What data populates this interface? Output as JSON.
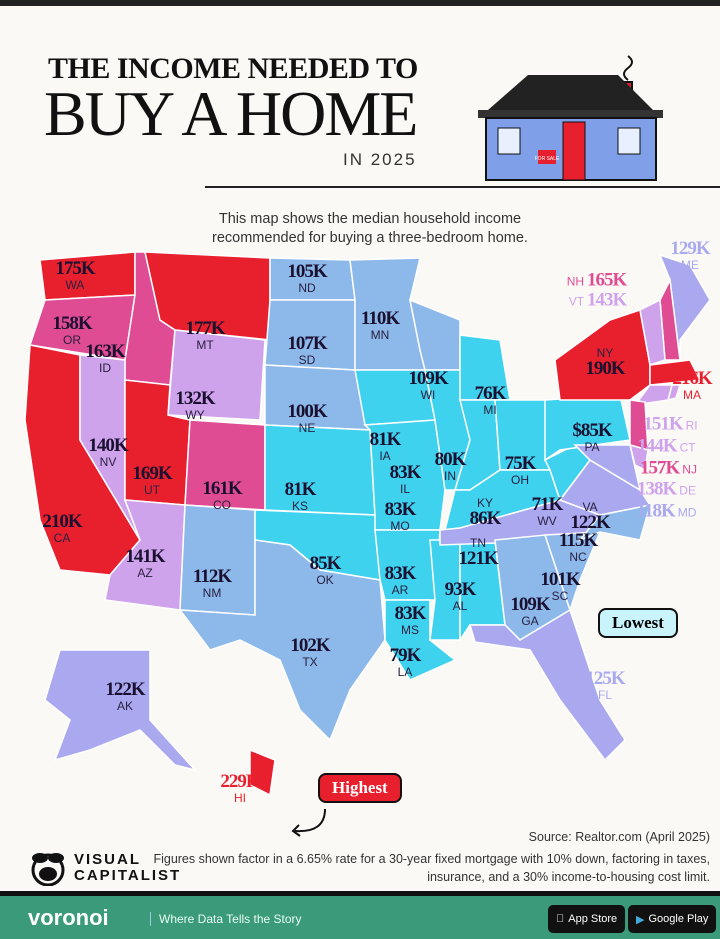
{
  "header": {
    "title_line1": "THE INCOME NEEDED TO",
    "title_line2": "BUY A HOME",
    "title_line3": "IN 2025",
    "house_sign": "FOR SALE",
    "description": "This map shows the median household income recommended for buying a three-bedroom home."
  },
  "colors": {
    "tier_highest": "#e8202e",
    "tier_high": "#e04c93",
    "tier_mid": "#cfa2ec",
    "tier_midlow": "#aaa9ef",
    "tier_low": "#8cb8ea",
    "tier_lowest": "#3fd2ee",
    "outline": "#111111",
    "footer": "#3a9a7a"
  },
  "states": [
    {
      "code": "WA",
      "value": "175K",
      "tier": "tier_highest"
    },
    {
      "code": "OR",
      "value": "158K",
      "tier": "tier_high"
    },
    {
      "code": "CA",
      "value": "210K",
      "tier": "tier_highest"
    },
    {
      "code": "ID",
      "value": "163K",
      "tier": "tier_high"
    },
    {
      "code": "NV",
      "value": "140K",
      "tier": "tier_mid"
    },
    {
      "code": "MT",
      "value": "177K",
      "tier": "tier_highest"
    },
    {
      "code": "WY",
      "value": "132K",
      "tier": "tier_mid"
    },
    {
      "code": "UT",
      "value": "169K",
      "tier": "tier_highest"
    },
    {
      "code": "CO",
      "value": "161K",
      "tier": "tier_high"
    },
    {
      "code": "AZ",
      "value": "141K",
      "tier": "tier_mid"
    },
    {
      "code": "NM",
      "value": "112K",
      "tier": "tier_low"
    },
    {
      "code": "ND",
      "value": "105K",
      "tier": "tier_low"
    },
    {
      "code": "SD",
      "value": "107K",
      "tier": "tier_low"
    },
    {
      "code": "NE",
      "value": "100K",
      "tier": "tier_low"
    },
    {
      "code": "KS",
      "value": "81K",
      "tier": "tier_lowest"
    },
    {
      "code": "OK",
      "value": "85K",
      "tier": "tier_lowest"
    },
    {
      "code": "TX",
      "value": "102K",
      "tier": "tier_low"
    },
    {
      "code": "MN",
      "value": "110K",
      "tier": "tier_low"
    },
    {
      "code": "IA",
      "value": "81K",
      "tier": "tier_lowest"
    },
    {
      "code": "MO",
      "value": "83K",
      "tier": "tier_lowest"
    },
    {
      "code": "AR",
      "value": "83K",
      "tier": "tier_lowest"
    },
    {
      "code": "LA",
      "value": "79K",
      "tier": "tier_lowest"
    },
    {
      "code": "WI",
      "value": "109K",
      "tier": "tier_low"
    },
    {
      "code": "IL",
      "value": "83K",
      "tier": "tier_lowest"
    },
    {
      "code": "MS",
      "value": "83K",
      "tier": "tier_lowest"
    },
    {
      "code": "AL",
      "value": "93K",
      "tier": "tier_lowest"
    },
    {
      "code": "MI",
      "value": "76K",
      "tier": "tier_lowest"
    },
    {
      "code": "IN",
      "value": "80K",
      "tier": "tier_lowest"
    },
    {
      "code": "OH",
      "value": "75K",
      "tier": "tier_lowest"
    },
    {
      "code": "KY",
      "value": "86K",
      "tier": "tier_lowest"
    },
    {
      "code": "TN",
      "value": "121K",
      "tier": "tier_midlow"
    },
    {
      "code": "GA",
      "value": "109K",
      "tier": "tier_low"
    },
    {
      "code": "FL",
      "value": "125K",
      "tier": "tier_midlow"
    },
    {
      "code": "SC",
      "value": "101K",
      "tier": "tier_low"
    },
    {
      "code": "NC",
      "value": "115K",
      "tier": "tier_low"
    },
    {
      "code": "VA",
      "value": "122K",
      "tier": "tier_midlow"
    },
    {
      "code": "WV",
      "value": "71K",
      "tier": "tier_lowest"
    },
    {
      "code": "PA",
      "value": "$85K",
      "tier": "tier_lowest"
    },
    {
      "code": "NY",
      "value": "190K",
      "tier": "tier_highest"
    },
    {
      "code": "MA",
      "value": "216K",
      "tier": "tier_highest"
    },
    {
      "code": "ME",
      "value": "129K",
      "tier": "tier_midlow"
    },
    {
      "code": "NH",
      "value": "165K",
      "tier": "tier_high"
    },
    {
      "code": "VT",
      "value": "143K",
      "tier": "tier_mid"
    },
    {
      "code": "RI",
      "value": "151K",
      "tier": "tier_mid"
    },
    {
      "code": "CT",
      "value": "144K",
      "tier": "tier_mid"
    },
    {
      "code": "NJ",
      "value": "157K",
      "tier": "tier_high"
    },
    {
      "code": "DE",
      "value": "138K",
      "tier": "tier_mid"
    },
    {
      "code": "MD",
      "value": "118K",
      "tier": "tier_midlow"
    },
    {
      "code": "AK",
      "value": "122K",
      "tier": "tier_midlow"
    },
    {
      "code": "HI",
      "value": "229K",
      "tier": "tier_highest"
    }
  ],
  "callouts": {
    "lowest": "Lowest",
    "highest": "Highest"
  },
  "footer": {
    "source": "Source: Realtor.com (April 2025)",
    "note": "Figures shown factor in a 6.65% rate for a 30-year fixed mortgage with 10% down, factoring in taxes, insurance, and a 30% income-to-housing cost limit.",
    "brand_line1": "VISUAL",
    "brand_line2": "CAPITALIST",
    "voronoi": "voronoi",
    "tagline": "Where Data Tells the Story",
    "app_store": "App Store",
    "google_play": "Google Play"
  }
}
